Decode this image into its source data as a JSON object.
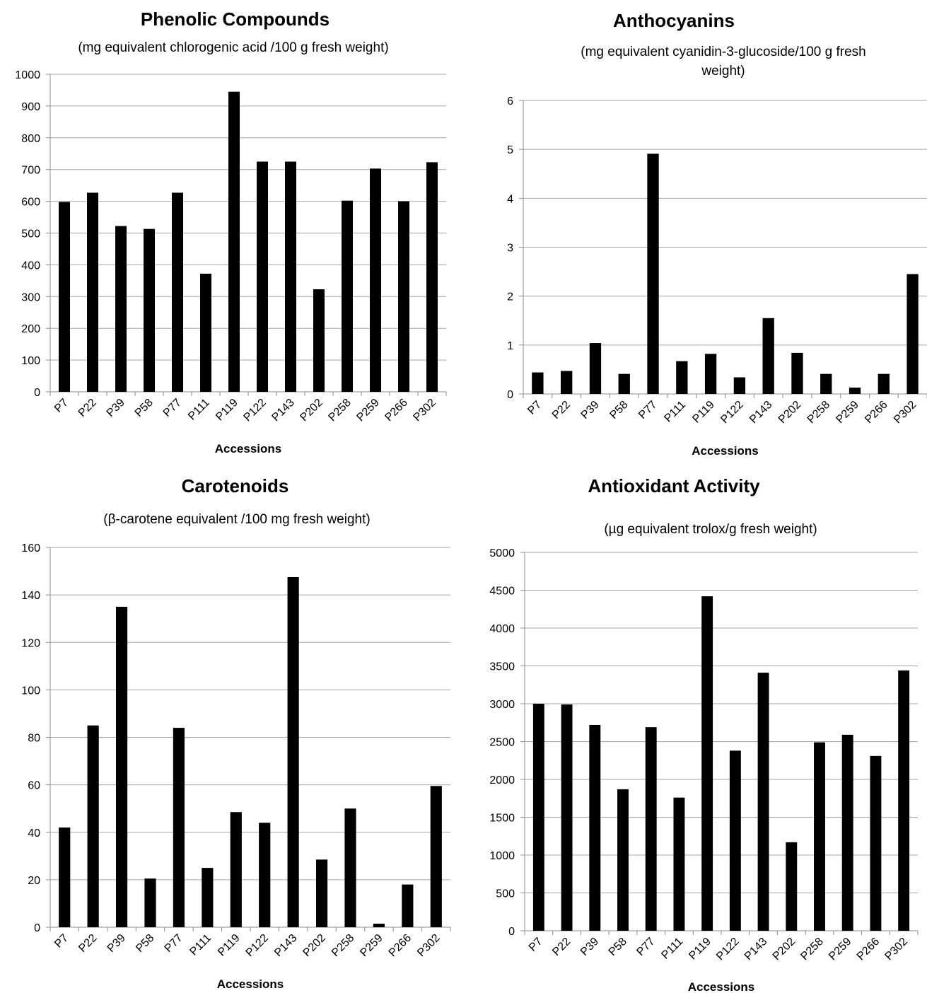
{
  "chart_data": [
    {
      "type": "bar",
      "title": "Phenolic Compounds",
      "subtitle": "(mg equivalent chlorogenic acid /100 g fresh weight)",
      "xlabel": "Accessions",
      "ylabel": "",
      "ylim": [
        0,
        1000
      ],
      "yticks": [
        0,
        100,
        200,
        300,
        400,
        500,
        600,
        700,
        800,
        900,
        1000
      ],
      "grid": true,
      "bar_color": "#000000",
      "categories": [
        "P7",
        "P22",
        "P39",
        "P58",
        "P77",
        "P111",
        "P119",
        "P122",
        "P143",
        "P202",
        "P258",
        "P259",
        "P266",
        "P302"
      ],
      "values": [
        598,
        627,
        522,
        513,
        627,
        372,
        945,
        725,
        725,
        323,
        602,
        703,
        600,
        723
      ]
    },
    {
      "type": "bar",
      "title": "Anthocyanins",
      "subtitle": "(mg equivalent cyanidin-3-glucoside/100 g fresh weight)",
      "xlabel": "Accessions",
      "ylabel": "",
      "ylim": [
        0,
        6
      ],
      "yticks": [
        0,
        1,
        2,
        3,
        4,
        5,
        6
      ],
      "grid": true,
      "bar_color": "#000000",
      "categories": [
        "P7",
        "P22",
        "P39",
        "P58",
        "P77",
        "P111",
        "P119",
        "P122",
        "P143",
        "P202",
        "P258",
        "P259",
        "P266",
        "P302"
      ],
      "values": [
        0.44,
        0.47,
        1.04,
        0.41,
        4.91,
        0.67,
        0.82,
        0.34,
        1.55,
        0.84,
        0.41,
        0.13,
        0.41,
        2.45
      ]
    },
    {
      "type": "bar",
      "title": "Carotenoids",
      "subtitle": "(β-carotene equivalent /100 mg fresh weight)",
      "xlabel": "Accessions",
      "ylabel": "",
      "ylim": [
        0,
        160
      ],
      "yticks": [
        0,
        20,
        40,
        60,
        80,
        100,
        120,
        140,
        160
      ],
      "grid": true,
      "bar_color": "#000000",
      "categories": [
        "P7",
        "P22",
        "P39",
        "P58",
        "P77",
        "P111",
        "P119",
        "P122",
        "P143",
        "P202",
        "P258",
        "P259",
        "P266",
        "P302"
      ],
      "values": [
        42,
        85,
        135,
        20.5,
        84,
        25,
        48.5,
        44,
        147.5,
        28.5,
        50,
        1.5,
        18,
        59.5
      ]
    },
    {
      "type": "bar",
      "title": "Antioxidant Activity",
      "subtitle": "(µg equivalent trolox/g fresh weight)",
      "xlabel": "Accessions",
      "ylabel": "",
      "ylim": [
        0,
        5000
      ],
      "yticks": [
        0,
        500,
        1000,
        1500,
        2000,
        2500,
        3000,
        3500,
        4000,
        4500,
        5000
      ],
      "grid": true,
      "bar_color": "#000000",
      "categories": [
        "P7",
        "P22",
        "P39",
        "P58",
        "P77",
        "P111",
        "P119",
        "P122",
        "P143",
        "P202",
        "P258",
        "P259",
        "P266",
        "P302"
      ],
      "values": [
        3000,
        2990,
        2720,
        1870,
        2690,
        1760,
        4420,
        2380,
        3410,
        1170,
        2490,
        2590,
        2310,
        3440
      ]
    }
  ]
}
